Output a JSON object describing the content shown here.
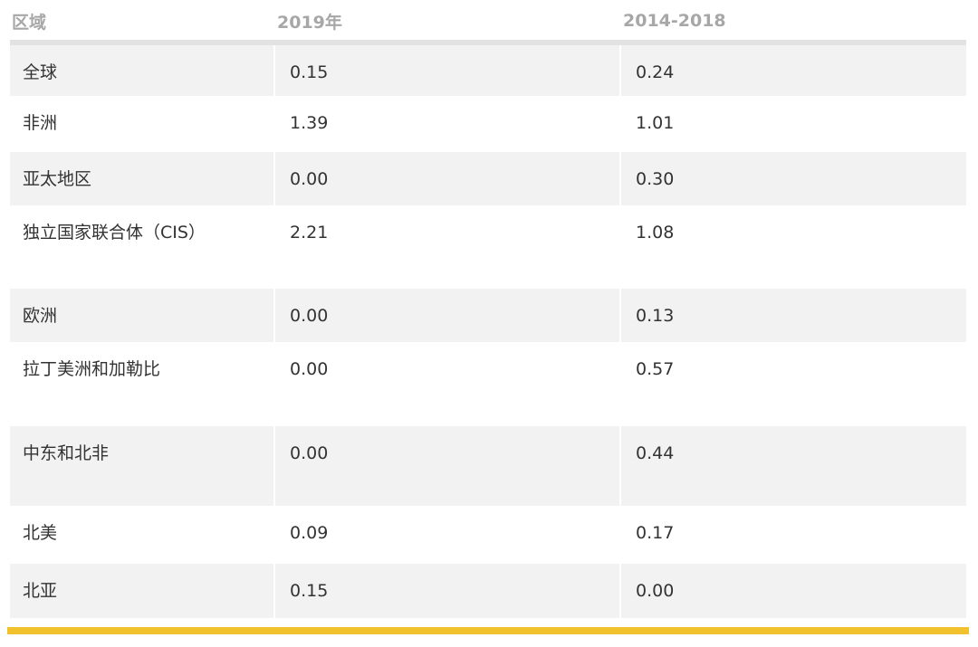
{
  "headers": [
    "区域",
    "2019年",
    "2014-2018"
  ],
  "rows": [
    {
      "region": "全球",
      "y2019": "0.15",
      "y2014_2018": "0.24"
    },
    {
      "region": "非洲",
      "y2019": "1.39",
      "y2014_2018": "1.01"
    },
    {
      "region": "亚太地区",
      "y2019": "0.00",
      "y2014_2018": "0.30"
    },
    {
      "region": "独立国家联合体（CIS）",
      "y2019": "2.21",
      "y2014_2018": "1.08"
    },
    {
      "region": "欧洲",
      "y2019": "0.00",
      "y2014_2018": "0.13"
    },
    {
      "region": "拉丁美洲和加勒比",
      "y2019": "0.00",
      "y2014_2018": "0.57"
    },
    {
      "region": "中东和北非",
      "y2019": "0.00",
      "y2014_2018": "0.44"
    },
    {
      "region": "北美",
      "y2019": "0.09",
      "y2014_2018": "0.17"
    },
    {
      "region": "北亚",
      "y2019": "0.15",
      "y2014_2018": "0.00"
    }
  ],
  "colors": {
    "header_text": "#a7a7a7",
    "row_shade": "#f2f2f2",
    "accent_bar": "#f2c12e"
  }
}
